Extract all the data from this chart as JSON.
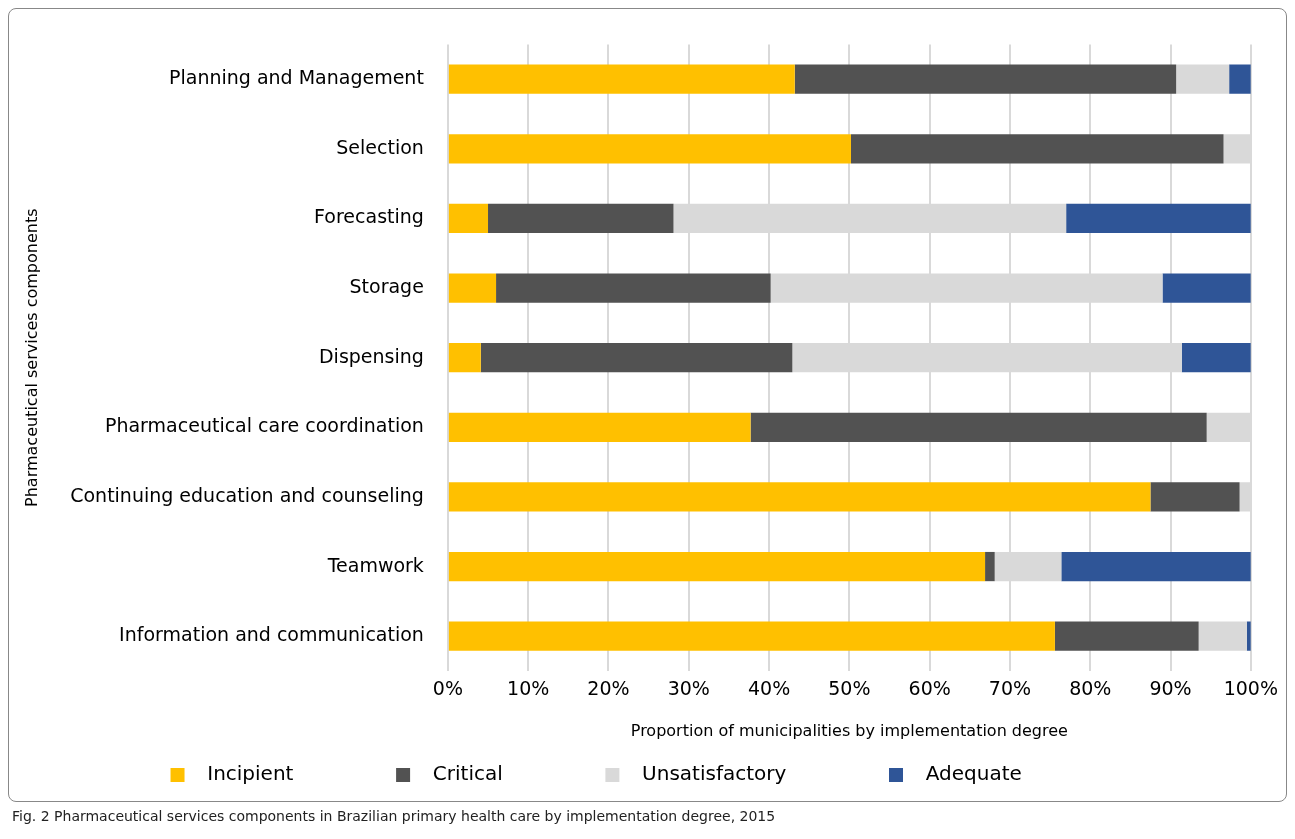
{
  "chart_data": {
    "type": "bar",
    "orientation": "horizontal",
    "stacked": true,
    "xlabel": "Proportion of municipalities by implementation degree",
    "ylabel": "Pharmaceutical services components",
    "categories": [
      "Planning and Management",
      "Selection",
      "Forecasting",
      "Storage",
      "Dispensing",
      "Pharmaceutical care coordination",
      "Continuing education and counseling",
      "Teamwork",
      "Information and communication"
    ],
    "series": [
      {
        "name": "Incipient",
        "color": "#ffc000",
        "values": [
          43.2,
          50.2,
          5.0,
          6.0,
          4.1,
          37.7,
          87.5,
          66.9,
          75.6
        ]
      },
      {
        "name": "Critical",
        "color": "#525252",
        "values": [
          47.5,
          46.4,
          23.1,
          34.2,
          38.8,
          56.8,
          11.1,
          1.2,
          17.9
        ]
      },
      {
        "name": "Unsatisfactory",
        "color": "#d9d9d9",
        "values": [
          6.6,
          3.4,
          48.9,
          48.8,
          48.5,
          5.5,
          1.4,
          8.3,
          6.0
        ]
      },
      {
        "name": "Adequate",
        "color": "#2f5597",
        "values": [
          2.7,
          0,
          23.0,
          11.0,
          8.6,
          0,
          0,
          23.6,
          0.5
        ]
      }
    ],
    "xlim": [
      0,
      100
    ],
    "xticks": [
      {
        "value": 0,
        "label": "0%"
      },
      {
        "value": 10,
        "label": "10%"
      },
      {
        "value": 20,
        "label": "20%"
      },
      {
        "value": 30,
        "label": "30%"
      },
      {
        "value": 40,
        "label": "40%"
      },
      {
        "value": 50,
        "label": "50%"
      },
      {
        "value": 60,
        "label": "60%"
      },
      {
        "value": 70,
        "label": "70%"
      },
      {
        "value": 80,
        "label": "80%"
      },
      {
        "value": 90,
        "label": "90%"
      },
      {
        "value": 100,
        "label": "100%"
      }
    ],
    "grid": "x",
    "legend": "bottom",
    "annotations": [
      "Fig. 2 Pharmaceutical services components in Brazilian primary health care by implementation degree, 2015"
    ]
  }
}
